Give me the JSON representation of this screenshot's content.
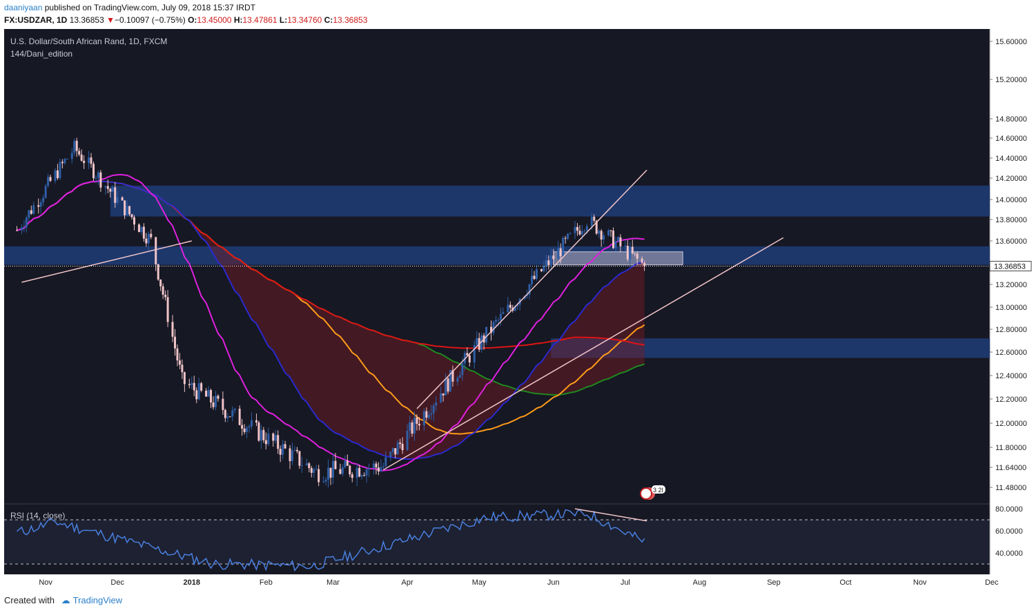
{
  "header": {
    "user": "daaniyaan",
    "published_text": "published on TradingView.com, July 09, 2018 15:37 IRDT",
    "symbol": "FX:USDZAR, 1D",
    "last": "13.36853",
    "change": "−0.10097 (−0.75%)",
    "o_label": "O:",
    "o": "13.45000",
    "h_label": "H:",
    "h": "13.47861",
    "l_label": "L:",
    "l": "13.34760",
    "c_label": "C:",
    "c": "13.36853"
  },
  "legend": {
    "title": "U.S. Dollar/South African Rand, 1D, FXCM",
    "indicator": "144/Dani_edition",
    "rsi": "RSI (14, close)"
  },
  "price_label": "13.36853",
  "event_badge": "3 2I",
  "footer": {
    "created_with": "Created with",
    "brand": "TradingView"
  },
  "colors": {
    "background": "#161823",
    "zone": "#1f3d78",
    "bull_candle": "#2f5fa7",
    "bear_candle": "#f2c5c9",
    "ma_red": "#e01414",
    "ma_orange": "#ff9c1a",
    "ma_green": "#1f8a1f",
    "ma_blue": "#2a2ad0",
    "ma_magenta": "#e020e0",
    "rsi_line": "#4a7fe0",
    "trendline": "#f2c5c9"
  },
  "chart_data": {
    "type": "candlestick",
    "y_axis_ticks": [
      "15.60000",
      "15.20000",
      "14.80000",
      "14.60000",
      "14.40000",
      "14.20000",
      "14.00000",
      "13.80000",
      "13.60000",
      "13.20000",
      "13.00000",
      "12.80000",
      "12.60000",
      "12.40000",
      "12.20000",
      "12.00000",
      "11.80000",
      "11.64000",
      "11.48000"
    ],
    "x_axis_ticks": [
      "Nov",
      "Dec",
      "2018",
      "Feb",
      "Mar",
      "Apr",
      "May",
      "Jun",
      "Jul",
      "Aug",
      "Sep",
      "Oct",
      "Nov",
      "Dec"
    ],
    "rsi_ticks": [
      "80.0000",
      "60.0000",
      "40.0000"
    ],
    "rsi_levels": [
      70,
      30
    ],
    "ylim": [
      11.4,
      15.7
    ],
    "zones": [
      {
        "from": "2017-11-28",
        "to": "open",
        "low": 13.83,
        "high": 14.13
      },
      {
        "from": "2017-10-01",
        "to": "open",
        "low": 13.38,
        "high": 13.55
      },
      {
        "from": "2018-05-31",
        "to": "open",
        "low": 12.55,
        "high": 12.72
      },
      {
        "from": "2018-06-01",
        "to": "2018-07-25",
        "low": 13.38,
        "high": 13.5
      }
    ],
    "ohlc_anchors": [
      {
        "date": "2017-10-20",
        "price": 13.7
      },
      {
        "date": "2017-11-13",
        "price": 14.5
      },
      {
        "date": "2017-12-15",
        "price": 13.6
      },
      {
        "date": "2017-12-28",
        "price": 12.35
      },
      {
        "date": "2018-02-22",
        "price": 11.6
      },
      {
        "date": "2018-03-22",
        "price": 11.65
      },
      {
        "date": "2018-05-04",
        "price": 12.75
      },
      {
        "date": "2018-06-15",
        "price": 13.8
      },
      {
        "date": "2018-07-09",
        "price": 13.37
      }
    ],
    "last_close": 13.36853,
    "rsi_anchors": [
      {
        "date": "2017-10-20",
        "value": 58
      },
      {
        "date": "2017-11-05",
        "value": 68
      },
      {
        "date": "2018-01-10",
        "value": 30
      },
      {
        "date": "2018-02-20",
        "value": 28
      },
      {
        "date": "2018-05-04",
        "value": 72
      },
      {
        "date": "2018-06-15",
        "value": 76
      },
      {
        "date": "2018-07-09",
        "value": 50
      }
    ]
  }
}
